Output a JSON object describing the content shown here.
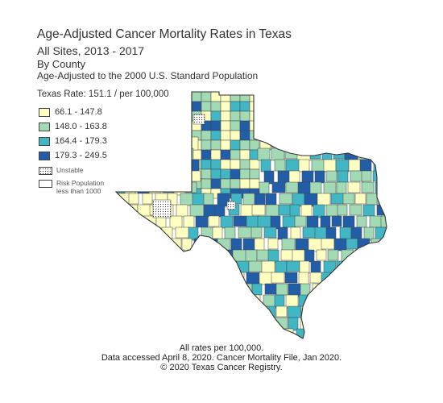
{
  "header": {
    "title_part1": "Age-Adjusted",
    "title_part2": "Cancer Mortality Rates in Texas",
    "subtitle": "All Sites, 2013 - 2017",
    "by_county": "By County",
    "standard": "Age-Adjusted to the 2000 U.S. Standard Population"
  },
  "state_rate": "Texas Rate: 151.1 / per 100,000",
  "legend": {
    "items": [
      {
        "label": "66.1 - 147.8",
        "color": "#ffffc2"
      },
      {
        "label": "148.0 - 163.8",
        "color": "#a1dab4"
      },
      {
        "label": "164.4 - 179.3",
        "color": "#41b6c4"
      },
      {
        "label": "179.3 - 249.5",
        "color": "#225ea8"
      }
    ],
    "unstable": "Unstable",
    "risk_line1": "Risk Population",
    "risk_line2": "less than 1000"
  },
  "footer": {
    "line1": "All rates per 100,000.",
    "line2": "Data accessed April 8, 2020. Cancer Mortality File, Jan 2020.",
    "line3": "© 2020 Texas Cancer Registry."
  },
  "map": {
    "region": "Texas",
    "class_colors": [
      "#ffffc2",
      "#a1dab4",
      "#41b6c4",
      "#225ea8"
    ],
    "outline_color": "#333333"
  }
}
